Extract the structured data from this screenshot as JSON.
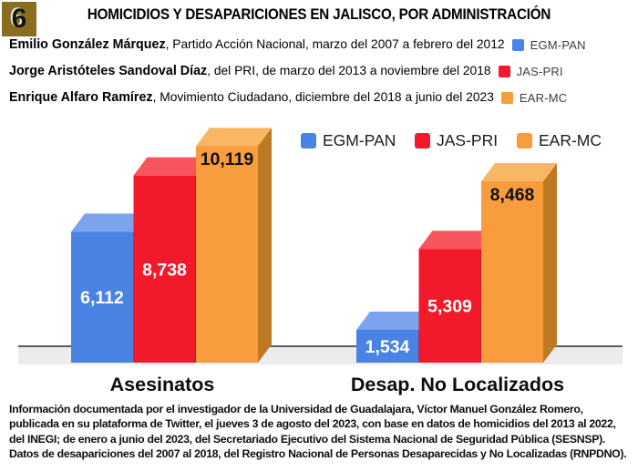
{
  "badge": {
    "number": "6"
  },
  "title": "HOMICIDIOS Y DESAPARICIONES EN JALISCO, POR ADMINISTRACIÓN",
  "administrations": [
    {
      "name": "Emilio González Márquez",
      "details": ", Partido Acción Nacional, marzo del 2007 a febrero del 2012",
      "code": "EGM-PAN",
      "color": "#4a86e8"
    },
    {
      "name": "Jorge Aristóteles Sandoval Díaz",
      "details": ", del PRI, de marzo del 2013 a noviembre del 2018",
      "code": "JAS-PRI",
      "color": "#f6182a"
    },
    {
      "name": "Enrique Alfaro Ramírez",
      "details": ", Movimiento Ciudadano, diciembre del 2018 a junio del 2023",
      "code": "EAR-MC",
      "color": "#f79d3c"
    }
  ],
  "chart_data": {
    "type": "bar",
    "style": "3d-bars",
    "title": "HOMICIDIOS Y DESAPARICIONES EN JALISCO, POR ADMINISTRACIÓN",
    "categories": [
      "Asesinatos",
      "Desap. No Localizados"
    ],
    "series": [
      {
        "name": "EGM-PAN",
        "values": [
          6112,
          1534
        ],
        "color": "#4a83e4",
        "color_light": "#7ba3ee",
        "color_dark": "#2d5cb4",
        "label_color": "#ffffff",
        "label_position": "center"
      },
      {
        "name": "JAS-PRI",
        "values": [
          8738,
          5309
        ],
        "color": "#f2192b",
        "color_light": "#f6555e",
        "color_dark": "#a30f1a",
        "label_color": "#ffffff",
        "label_position": "center"
      },
      {
        "name": "EAR-MC",
        "values": [
          10119,
          8468
        ],
        "color": "#f89c3e",
        "color_light": "#fab763",
        "color_dark": "#bd7a22",
        "label_color": "#111111",
        "label_position": "top"
      }
    ],
    "xlabel": "",
    "ylabel": "",
    "ylim": [
      0,
      10500
    ],
    "legend_position": "top",
    "grid": false
  },
  "footnote": "Información documentada por el investigador de la Universidad de Guadalajara, Víctor Manuel González Romero, publicada en su plataforma de Twitter, el jueves 3 de agosto del 2023, con base en datos de homicidios del 2013 al 2022, del INEGI; de enero a junio del 2023, del Secretariado Ejecutivo del Sistema Nacional de Seguridad Pública (SESNSP). Datos de desapariciones del 2007 al 2018, del Registro Nacional de Personas Desaparecidas y No Localizadas (RNPDNO)."
}
